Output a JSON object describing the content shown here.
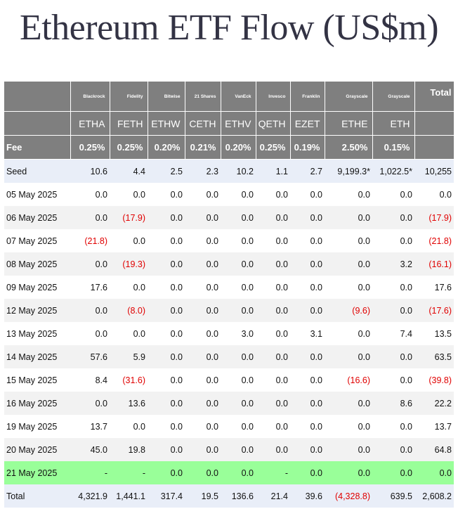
{
  "title": "Ethereum ETF Flow (US$m)",
  "issuers": [
    "Blackrock",
    "Fidelity",
    "Bitwise",
    "21 Shares",
    "VanEck",
    "Invesco",
    "Franklin",
    "Grayscale",
    "Grayscale"
  ],
  "total_header": "Total",
  "tickers": [
    "ETHA",
    "FETH",
    "ETHW",
    "CETH",
    "ETHV",
    "QETH",
    "EZET",
    "ETHE",
    "ETH"
  ],
  "fee_label": "Fee",
  "fees": [
    "0.25%",
    "0.25%",
    "0.20%",
    "0.21%",
    "0.20%",
    "0.25%",
    "0.19%",
    "2.50%",
    "0.15%"
  ],
  "rows": [
    {
      "label": "Seed",
      "values": [
        "10.6",
        "4.4",
        "2.5",
        "2.3",
        "10.2",
        "1.1",
        "2.7",
        "9,199.3*",
        "1,022.5*"
      ],
      "total": "10,255"
    },
    {
      "label": "05 May 2025",
      "values": [
        "0.0",
        "0.0",
        "0.0",
        "0.0",
        "0.0",
        "0.0",
        "0.0",
        "0.0",
        "0.0"
      ],
      "total": "0.0"
    },
    {
      "label": "06 May 2025",
      "values": [
        "0.0",
        "(17.9)",
        "0.0",
        "0.0",
        "0.0",
        "0.0",
        "0.0",
        "0.0",
        "0.0"
      ],
      "total": "(17.9)"
    },
    {
      "label": "07 May 2025",
      "values": [
        "(21.8)",
        "0.0",
        "0.0",
        "0.0",
        "0.0",
        "0.0",
        "0.0",
        "0.0",
        "0.0"
      ],
      "total": "(21.8)"
    },
    {
      "label": "08 May 2025",
      "values": [
        "0.0",
        "(19.3)",
        "0.0",
        "0.0",
        "0.0",
        "0.0",
        "0.0",
        "0.0",
        "3.2"
      ],
      "total": "(16.1)"
    },
    {
      "label": "09 May 2025",
      "values": [
        "17.6",
        "0.0",
        "0.0",
        "0.0",
        "0.0",
        "0.0",
        "0.0",
        "0.0",
        "0.0"
      ],
      "total": "17.6"
    },
    {
      "label": "12 May 2025",
      "values": [
        "0.0",
        "(8.0)",
        "0.0",
        "0.0",
        "0.0",
        "0.0",
        "0.0",
        "(9.6)",
        "0.0"
      ],
      "total": "(17.6)"
    },
    {
      "label": "13 May 2025",
      "values": [
        "0.0",
        "0.0",
        "0.0",
        "0.0",
        "3.0",
        "0.0",
        "3.1",
        "0.0",
        "7.4"
      ],
      "total": "13.5"
    },
    {
      "label": "14 May 2025",
      "values": [
        "57.6",
        "5.9",
        "0.0",
        "0.0",
        "0.0",
        "0.0",
        "0.0",
        "0.0",
        "0.0"
      ],
      "total": "63.5"
    },
    {
      "label": "15 May 2025",
      "values": [
        "8.4",
        "(31.6)",
        "0.0",
        "0.0",
        "0.0",
        "0.0",
        "0.0",
        "(16.6)",
        "0.0"
      ],
      "total": "(39.8)"
    },
    {
      "label": "16 May 2025",
      "values": [
        "0.0",
        "13.6",
        "0.0",
        "0.0",
        "0.0",
        "0.0",
        "0.0",
        "0.0",
        "8.6"
      ],
      "total": "22.2"
    },
    {
      "label": "19 May 2025",
      "values": [
        "13.7",
        "0.0",
        "0.0",
        "0.0",
        "0.0",
        "0.0",
        "0.0",
        "0.0",
        "0.0"
      ],
      "total": "13.7"
    },
    {
      "label": "20 May 2025",
      "values": [
        "45.0",
        "19.8",
        "0.0",
        "0.0",
        "0.0",
        "0.0",
        "0.0",
        "0.0",
        "0.0"
      ],
      "total": "64.8"
    },
    {
      "label": "21 May 2025",
      "values": [
        "-",
        "-",
        "0.0",
        "0.0",
        "0.0",
        "-",
        "0.0",
        "0.0",
        "0.0"
      ],
      "total": "0.0",
      "highlight": true
    },
    {
      "label": "Total",
      "values": [
        "4,321.9",
        "1,441.1",
        "317.4",
        "19.5",
        "136.6",
        "21.4",
        "39.6",
        "(4,328.8)",
        "639.5"
      ],
      "total": "2,608.2"
    }
  ],
  "colors": {
    "header_bg": "#7f7f7f",
    "negative": "#e00000",
    "highlight_row": "#99ff99",
    "seed_total_bg": "#e9eef8",
    "alt_row_bg": "#f2f2f2"
  }
}
